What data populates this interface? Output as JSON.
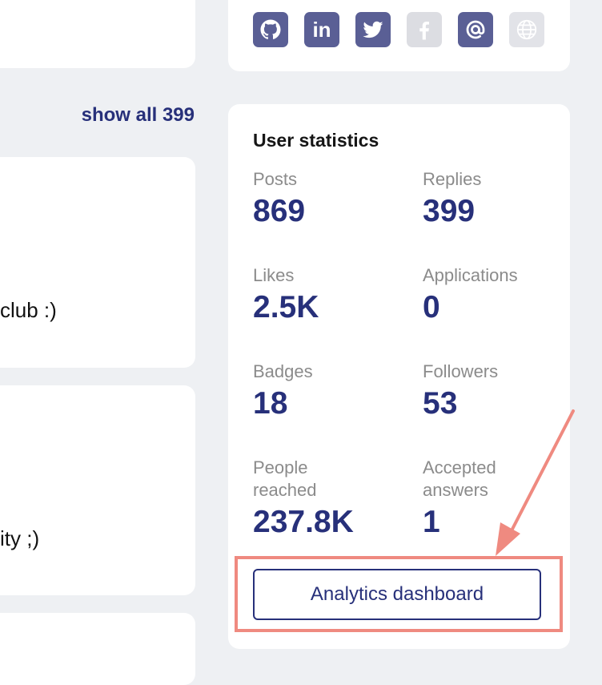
{
  "left": {
    "show_all": "show all 399",
    "snippets": [
      "club :)",
      "ity ;)"
    ]
  },
  "social": {
    "icons": [
      {
        "name": "github-icon",
        "state": "active"
      },
      {
        "name": "linkedin-icon",
        "state": "active",
        "glyph": "in"
      },
      {
        "name": "twitter-icon",
        "state": "active"
      },
      {
        "name": "facebook-icon",
        "state": "inactive"
      },
      {
        "name": "email-icon",
        "state": "active"
      },
      {
        "name": "globe-icon",
        "state": "inactive"
      }
    ],
    "active_color": "#5a5f95",
    "inactive_color": "#dcdde2"
  },
  "stats": {
    "title": "User statistics",
    "items": [
      {
        "label": "Posts",
        "value": "869"
      },
      {
        "label": "Replies",
        "value": "399"
      },
      {
        "label": "Likes",
        "value": "2.5K"
      },
      {
        "label": "Applications",
        "value": "0"
      },
      {
        "label": "Badges",
        "value": "18"
      },
      {
        "label": "Followers",
        "value": "53"
      },
      {
        "label": "People reached",
        "value": "237.8K"
      },
      {
        "label": "Accepted answers",
        "value": "1"
      }
    ],
    "button_label": "Analytics dashboard"
  },
  "colors": {
    "accent": "#27307a",
    "annotation": "#ef8a80",
    "background": "#eef0f3"
  }
}
